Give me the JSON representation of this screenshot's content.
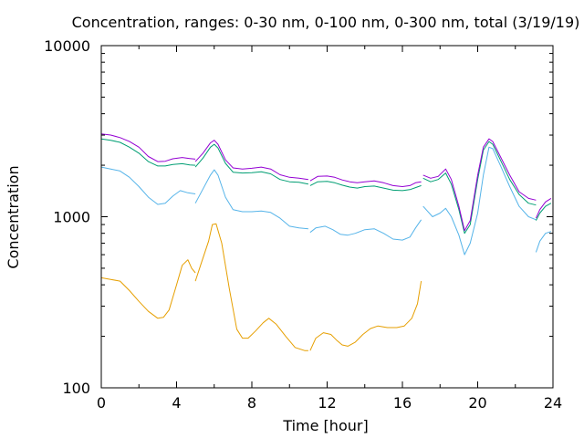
{
  "chart_data": {
    "type": "line",
    "title": "Concentration, ranges: 0-30 nm, 0-100 nm, 0-300 nm, total (3/19/19)",
    "xlabel": "Time [hour]",
    "ylabel": "Concentration",
    "xlim": [
      0,
      24
    ],
    "ylim": [
      100,
      10000
    ],
    "yscale": "log",
    "grid": false,
    "legend": "none",
    "x_ticks": [
      0,
      4,
      8,
      12,
      16,
      20,
      24
    ],
    "x_tick_labels": [
      "0",
      "4",
      "8",
      "12",
      "16",
      "20",
      "24"
    ],
    "y_ticks": [
      100,
      1000,
      10000
    ],
    "y_tick_labels": [
      "100",
      "1000",
      "10000"
    ],
    "series": [
      {
        "color": "#e69f00",
        "segments": [
          [
            [
              0,
              440
            ],
            [
              0.5,
              430
            ],
            [
              1,
              420
            ],
            [
              1.5,
              370
            ],
            [
              2,
              320
            ],
            [
              2.5,
              280
            ],
            [
              3,
              255
            ],
            [
              3.3,
              258
            ],
            [
              3.6,
              285
            ],
            [
              4,
              400
            ],
            [
              4.3,
              520
            ],
            [
              4.6,
              560
            ],
            [
              4.8,
              500
            ],
            [
              5,
              470
            ]
          ],
          [
            [
              5,
              420
            ],
            [
              5.3,
              530
            ],
            [
              5.7,
              720
            ],
            [
              5.9,
              900
            ],
            [
              6.1,
              910
            ],
            [
              6.4,
              700
            ],
            [
              6.8,
              380
            ],
            [
              7.2,
              220
            ],
            [
              7.5,
              195
            ],
            [
              7.8,
              195
            ],
            [
              8.2,
              215
            ],
            [
              8.6,
              240
            ],
            [
              8.9,
              255
            ],
            [
              9.3,
              235
            ],
            [
              9.8,
              200
            ],
            [
              10.3,
              172
            ],
            [
              10.8,
              165
            ],
            [
              11,
              165
            ]
          ],
          [
            [
              11.1,
              165
            ],
            [
              11.4,
              195
            ],
            [
              11.8,
              210
            ],
            [
              12.2,
              205
            ],
            [
              12.5,
              190
            ],
            [
              12.8,
              178
            ],
            [
              13.1,
              175
            ],
            [
              13.5,
              185
            ],
            [
              13.9,
              205
            ],
            [
              14.3,
              222
            ],
            [
              14.7,
              230
            ],
            [
              15.2,
              225
            ],
            [
              15.7,
              225
            ],
            [
              16.1,
              230
            ],
            [
              16.5,
              255
            ],
            [
              16.8,
              310
            ],
            [
              17,
              420
            ]
          ]
        ]
      },
      {
        "color": "#56b4e9",
        "segments": [
          [
            [
              0,
              1950
            ],
            [
              0.5,
              1900
            ],
            [
              1,
              1850
            ],
            [
              1.5,
              1700
            ],
            [
              2,
              1500
            ],
            [
              2.5,
              1300
            ],
            [
              3,
              1180
            ],
            [
              3.4,
              1200
            ],
            [
              3.8,
              1320
            ],
            [
              4.2,
              1420
            ],
            [
              4.6,
              1380
            ],
            [
              5,
              1360
            ]
          ],
          [
            [
              5,
              1200
            ],
            [
              5.4,
              1450
            ],
            [
              5.8,
              1750
            ],
            [
              6,
              1880
            ],
            [
              6.2,
              1750
            ],
            [
              6.6,
              1300
            ],
            [
              7,
              1100
            ],
            [
              7.5,
              1070
            ],
            [
              8,
              1070
            ],
            [
              8.5,
              1080
            ],
            [
              9,
              1060
            ],
            [
              9.5,
              980
            ],
            [
              10,
              880
            ],
            [
              10.5,
              860
            ],
            [
              11,
              850
            ]
          ],
          [
            [
              11.1,
              810
            ],
            [
              11.4,
              860
            ],
            [
              11.9,
              880
            ],
            [
              12.3,
              840
            ],
            [
              12.7,
              790
            ],
            [
              13.1,
              780
            ],
            [
              13.5,
              800
            ],
            [
              14,
              840
            ],
            [
              14.5,
              850
            ],
            [
              15,
              800
            ],
            [
              15.5,
              740
            ],
            [
              16,
              730
            ],
            [
              16.4,
              760
            ],
            [
              16.7,
              860
            ],
            [
              17,
              960
            ]
          ],
          [
            [
              17.1,
              1150
            ],
            [
              17.6,
              1000
            ],
            [
              18,
              1050
            ],
            [
              18.3,
              1120
            ],
            [
              18.6,
              1000
            ],
            [
              19,
              780
            ],
            [
              19.3,
              600
            ],
            [
              19.6,
              700
            ],
            [
              20,
              1050
            ],
            [
              20.3,
              1750
            ],
            [
              20.6,
              2550
            ],
            [
              20.8,
              2500
            ],
            [
              21.2,
              2000
            ],
            [
              21.7,
              1500
            ],
            [
              22.2,
              1150
            ],
            [
              22.7,
              1000
            ],
            [
              23.1,
              960
            ]
          ],
          [
            [
              23.1,
              620
            ],
            [
              23.3,
              720
            ],
            [
              23.6,
              800
            ],
            [
              23.9,
              820
            ]
          ]
        ]
      },
      {
        "color": "#009e73",
        "segments": [
          [
            [
              0,
              2850
            ],
            [
              0.5,
              2800
            ],
            [
              1,
              2720
            ],
            [
              1.5,
              2550
            ],
            [
              2,
              2350
            ],
            [
              2.5,
              2100
            ],
            [
              3,
              1980
            ],
            [
              3.4,
              1980
            ],
            [
              3.8,
              2020
            ],
            [
              4.3,
              2040
            ],
            [
              4.7,
              2010
            ],
            [
              5,
              2000
            ]
          ],
          [
            [
              5,
              1950
            ],
            [
              5.4,
              2200
            ],
            [
              5.8,
              2550
            ],
            [
              6,
              2650
            ],
            [
              6.2,
              2520
            ],
            [
              6.6,
              2050
            ],
            [
              7,
              1820
            ],
            [
              7.5,
              1800
            ],
            [
              8,
              1810
            ],
            [
              8.5,
              1830
            ],
            [
              9,
              1780
            ],
            [
              9.5,
              1650
            ],
            [
              10,
              1600
            ],
            [
              10.5,
              1590
            ],
            [
              11,
              1550
            ]
          ],
          [
            [
              11.1,
              1520
            ],
            [
              11.5,
              1600
            ],
            [
              12,
              1610
            ],
            [
              12.4,
              1580
            ],
            [
              12.8,
              1530
            ],
            [
              13.2,
              1490
            ],
            [
              13.6,
              1470
            ],
            [
              14,
              1500
            ],
            [
              14.5,
              1510
            ],
            [
              15,
              1470
            ],
            [
              15.5,
              1430
            ],
            [
              16,
              1420
            ],
            [
              16.4,
              1440
            ],
            [
              16.7,
              1480
            ],
            [
              17,
              1520
            ]
          ],
          [
            [
              17.1,
              1680
            ],
            [
              17.5,
              1600
            ],
            [
              17.9,
              1650
            ],
            [
              18.3,
              1800
            ],
            [
              18.6,
              1550
            ],
            [
              19,
              1100
            ],
            [
              19.3,
              800
            ],
            [
              19.6,
              900
            ],
            [
              20,
              1650
            ],
            [
              20.3,
              2450
            ],
            [
              20.6,
              2750
            ],
            [
              20.8,
              2650
            ],
            [
              21.2,
              2150
            ],
            [
              21.7,
              1650
            ],
            [
              22.2,
              1350
            ],
            [
              22.7,
              1200
            ],
            [
              23.1,
              1170
            ]
          ],
          [
            [
              23.1,
              950
            ],
            [
              23.3,
              1050
            ],
            [
              23.6,
              1150
            ],
            [
              23.9,
              1200
            ]
          ]
        ]
      },
      {
        "color": "#9400d3",
        "segments": [
          [
            [
              0,
              3050
            ],
            [
              0.5,
              3000
            ],
            [
              1,
              2900
            ],
            [
              1.5,
              2750
            ],
            [
              2,
              2550
            ],
            [
              2.5,
              2250
            ],
            [
              3,
              2100
            ],
            [
              3.4,
              2110
            ],
            [
              3.8,
              2180
            ],
            [
              4.3,
              2220
            ],
            [
              4.7,
              2190
            ],
            [
              5,
              2170
            ]
          ],
          [
            [
              5,
              2100
            ],
            [
              5.4,
              2350
            ],
            [
              5.8,
              2700
            ],
            [
              6,
              2800
            ],
            [
              6.2,
              2650
            ],
            [
              6.6,
              2150
            ],
            [
              7,
              1930
            ],
            [
              7.5,
              1900
            ],
            [
              8,
              1920
            ],
            [
              8.5,
              1950
            ],
            [
              9,
              1900
            ],
            [
              9.5,
              1760
            ],
            [
              10,
              1700
            ],
            [
              10.5,
              1680
            ],
            [
              11,
              1650
            ]
          ],
          [
            [
              11.1,
              1620
            ],
            [
              11.5,
              1720
            ],
            [
              12,
              1730
            ],
            [
              12.4,
              1700
            ],
            [
              12.8,
              1640
            ],
            [
              13.2,
              1600
            ],
            [
              13.6,
              1580
            ],
            [
              14,
              1600
            ],
            [
              14.5,
              1620
            ],
            [
              15,
              1580
            ],
            [
              15.5,
              1520
            ],
            [
              16,
              1500
            ],
            [
              16.4,
              1520
            ],
            [
              16.7,
              1580
            ],
            [
              17,
              1600
            ]
          ],
          [
            [
              17.1,
              1750
            ],
            [
              17.5,
              1680
            ],
            [
              17.9,
              1720
            ],
            [
              18.3,
              1900
            ],
            [
              18.6,
              1650
            ],
            [
              19,
              1150
            ],
            [
              19.3,
              830
            ],
            [
              19.6,
              950
            ],
            [
              20,
              1750
            ],
            [
              20.3,
              2550
            ],
            [
              20.6,
              2850
            ],
            [
              20.8,
              2750
            ],
            [
              21.2,
              2250
            ],
            [
              21.7,
              1750
            ],
            [
              22.2,
              1400
            ],
            [
              22.7,
              1280
            ],
            [
              23.1,
              1250
            ]
          ],
          [
            [
              23.1,
              980
            ],
            [
              23.3,
              1100
            ],
            [
              23.6,
              1220
            ],
            [
              23.9,
              1280
            ]
          ]
        ]
      }
    ]
  }
}
